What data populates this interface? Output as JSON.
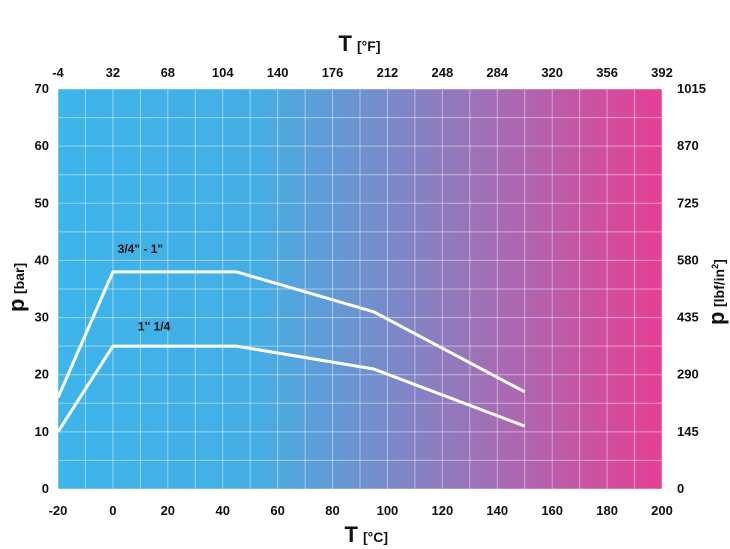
{
  "chart_data": {
    "type": "line",
    "x_bottom": {
      "title": "T",
      "unit": "[°C]",
      "range": [
        -20,
        200
      ],
      "ticks": [
        "-20",
        "0",
        "20",
        "40",
        "60",
        "80",
        "100",
        "120",
        "140",
        "160",
        "180",
        "200"
      ]
    },
    "x_top": {
      "title": "T",
      "unit": "[°F]",
      "range": [
        -4,
        392
      ],
      "ticks": [
        "-4",
        "32",
        "68",
        "104",
        "140",
        "176",
        "212",
        "248",
        "284",
        "320",
        "356",
        "392"
      ]
    },
    "y_left": {
      "title": "p",
      "unit": "[bar]",
      "range": [
        0,
        70
      ],
      "ticks": [
        "0",
        "10",
        "20",
        "30",
        "40",
        "50",
        "60",
        "70"
      ]
    },
    "y_right": {
      "title": "p",
      "unit": "[lbf/in",
      "unit_sup": "2",
      "unit_end": "]",
      "range": [
        0,
        1015
      ],
      "ticks": [
        "0",
        "145",
        "290",
        "435",
        "580",
        "725",
        "870",
        "1015"
      ]
    },
    "grid": true,
    "background_gradient": [
      "#3db4ea",
      "#e63f93"
    ],
    "line_color": "#ffffff",
    "series": [
      {
        "name": "3/4\" - 1\"",
        "x": [
          -20,
          0,
          45,
          95,
          150
        ],
        "y": [
          16,
          38,
          38,
          31,
          17
        ]
      },
      {
        "name": "1\" 1/4",
        "x": [
          -20,
          0,
          45,
          95,
          150
        ],
        "y": [
          10,
          25,
          25,
          21,
          11
        ]
      }
    ]
  }
}
